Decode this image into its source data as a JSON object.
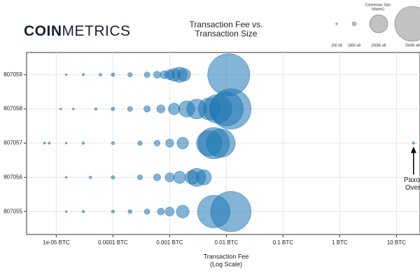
{
  "chart_data": {
    "type": "scatter",
    "logo": [
      "COIN",
      "METRICS"
    ],
    "title": [
      "Transaction Fee vs.",
      "Transaction Size"
    ],
    "xlabel": [
      "Transaction Fee",
      "(Log Scale)"
    ],
    "xscale": "log",
    "grid": true,
    "color": "#1f77b4",
    "xlim": [
      3e-06,
      26
    ],
    "xticks": [
      {
        "value": 1e-05,
        "label": "1e-05 BTC"
      },
      {
        "value": 0.0001,
        "label": "0.0001 BTC"
      },
      {
        "value": 0.001,
        "label": "0.001 BTC"
      },
      {
        "value": 0.01,
        "label": "0.01 BTC"
      },
      {
        "value": 0.1,
        "label": "0.1 BTC"
      },
      {
        "value": 1,
        "label": "1 BTC"
      },
      {
        "value": 10,
        "label": "10 BTC"
      }
    ],
    "ylim": [
      807054.33,
      807059.65
    ],
    "yticks": [
      807055,
      807056,
      807057,
      807058,
      807059
    ],
    "x": [
      1.5e-05,
      3e-05,
      6e-05,
      0.0001,
      0.0002,
      0.0004,
      0.0006,
      0.0008,
      0.001,
      0.0012,
      0.0015,
      0.0018,
      0.011,
      1.2e-05,
      2e-05,
      5e-05,
      0.0001,
      0.0002,
      0.0004,
      0.0007,
      0.0012,
      0.002,
      0.003,
      0.005,
      0.007,
      0.01,
      0.012,
      6.2e-06,
      7.5e-06,
      1.5e-05,
      3e-05,
      0.0001,
      0.0003,
      0.0006,
      0.001,
      0.0017,
      0.005,
      0.006,
      0.008,
      20,
      1.5e-05,
      4e-05,
      0.0001,
      0.0003,
      0.0006,
      0.001,
      0.0015,
      0.0025,
      0.003,
      0.004,
      1.5e-05,
      3e-05,
      0.0001,
      0.0002,
      0.0004,
      0.0007,
      0.001,
      0.0017,
      0.006,
      0.012
    ],
    "y": [
      807059,
      807059,
      807059,
      807059,
      807059,
      807059,
      807059,
      807059,
      807059,
      807059,
      807059,
      807059,
      807059,
      807058,
      807058,
      807058,
      807058,
      807058,
      807058,
      807058,
      807058,
      807058,
      807058,
      807058,
      807058,
      807058,
      807058,
      807057,
      807057,
      807057,
      807057,
      807057,
      807057,
      807057,
      807057,
      807057,
      807057,
      807057,
      807057,
      807057,
      807056,
      807056,
      807056,
      807056,
      807056,
      807056,
      807056,
      807056,
      807056,
      807056,
      807055,
      807055,
      807055,
      807055,
      807055,
      807055,
      807055,
      807055,
      807055,
      807055
    ],
    "size": [
      200,
      300,
      500,
      800,
      1200,
      2000,
      3000,
      4000,
      6000,
      10000,
      14000,
      10000,
      108000,
      200,
      200,
      400,
      800,
      1500,
      2500,
      4000,
      8000,
      16000,
      24000,
      30000,
      50000,
      70000,
      100000,
      300,
      300,
      200,
      400,
      600,
      1200,
      2000,
      4000,
      8000,
      40000,
      60000,
      50000,
      400,
      200,
      400,
      800,
      1500,
      3000,
      5000,
      9000,
      12000,
      20000,
      14000,
      200,
      400,
      600,
      1000,
      1800,
      3000,
      5000,
      10000,
      65000,
      100000
    ],
    "size_legend": {
      "title": [
        "Consensus Size",
        "(vbytes)"
      ],
      "sizes": [
        200,
        1000,
        20000,
        75000
      ],
      "labels": [
        "200 vB",
        "1000 vB",
        "20000 vB",
        "75000 vB"
      ]
    },
    "annotation": {
      "lines": [
        "Paxos",
        "Overpayment"
      ],
      "x": 20,
      "y": 807057
    }
  }
}
